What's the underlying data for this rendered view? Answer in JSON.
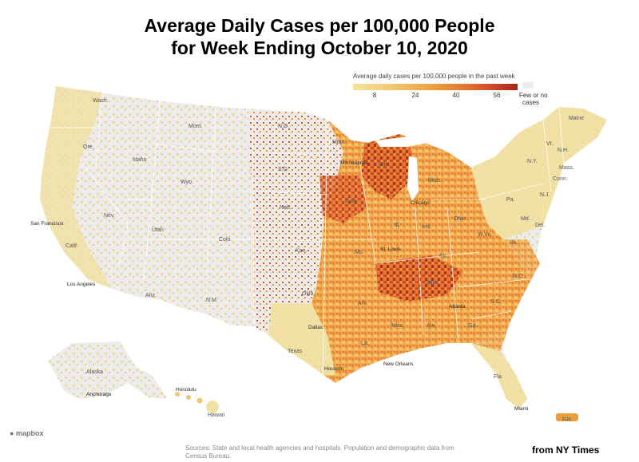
{
  "title_line1": "Average Daily Cases per 100,000 People",
  "title_line2": "for Week Ending October 10, 2020",
  "legend": {
    "title": "Average daily cases per 100,000 people in the past week",
    "ticks": [
      "8",
      "24",
      "40",
      "56"
    ],
    "few_label_line1": "Few or no",
    "few_label_line2": "cases",
    "colors": [
      "#f6e2a0",
      "#f3c66a",
      "#ec9c3c",
      "#e2722c",
      "#cf4424",
      "#a8221c"
    ]
  },
  "state_labels": {
    "wash": "Wash.",
    "ore": "Ore.",
    "calif": "Calif.",
    "idaho": "Idaho",
    "nev": "Nev.",
    "mont": "Mont.",
    "wyo": "Wyo.",
    "utah": "Utah",
    "colo": "Colo.",
    "ariz": "Ariz.",
    "nm": "N.M.",
    "nd": "N.D.",
    "sd": "S.D.",
    "neb": "Neb.",
    "kan": "Kan.",
    "okla": "Okla.",
    "texas": "Texas",
    "minn": "Minn.",
    "iowa": "Iowa",
    "mo": "Mo.",
    "ark": "Ark.",
    "la": "La.",
    "wis": "Wis.",
    "ill": "Ill.",
    "mich": "Mich.",
    "ind": "Ind.",
    "ohio": "Ohio",
    "ky": "Ky.",
    "tenn": "Tenn.",
    "miss": "Miss.",
    "ala": "Ala.",
    "ga": "Ga.",
    "fla": "Fla.",
    "sc": "S.C.",
    "nc": "N.C.",
    "va": "Va.",
    "wva": "W.Va.",
    "pa": "Pa.",
    "ny": "N.Y.",
    "vt": "Vt.",
    "nh": "N.H.",
    "maine": "Maine",
    "mass": "Mass.",
    "conn": "Conn.",
    "nj": "N.J.",
    "del": "Del.",
    "md": "Md.",
    "alaska": "Alaska",
    "hawaii": "Hawaii",
    "pr": "P.R."
  },
  "city_labels": {
    "san_francisco": "San Francisco",
    "los_angeles": "Los Angeles",
    "chicago": "Chicago",
    "st_louis": "St. Louis",
    "dallas": "Dallas",
    "houston": "Houston",
    "new_orleans": "New Orleans",
    "atlanta": "Atlanta",
    "miami": "Miami",
    "anchorage": "Anchorage",
    "honolulu": "Honolulu",
    "minneapolis": "Minneapolis"
  },
  "sources": "Sources: State and local health agencies and hospitals. Population and demographic data from Census Bureau.",
  "credit": "from NY Times",
  "mapbox_logo": "mapbox"
}
